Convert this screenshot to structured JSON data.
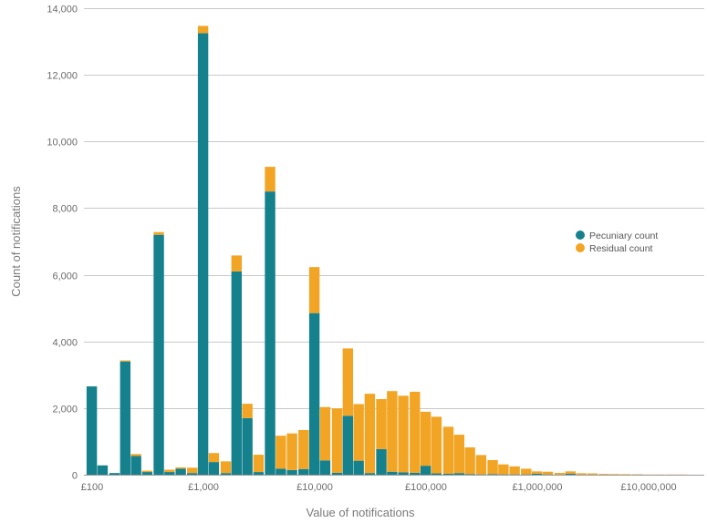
{
  "chart_data": {
    "type": "bar",
    "stacked": true,
    "x_scale": "log",
    "xlabel": "Value of notifications",
    "ylabel": "Count of notifications",
    "xticks": [
      {
        "value": 100,
        "label": "£100"
      },
      {
        "value": 1000,
        "label": "£1,000"
      },
      {
        "value": 10000,
        "label": "£10,000"
      },
      {
        "value": 100000,
        "label": "£100,000"
      },
      {
        "value": 1000000,
        "label": "£1,000,000"
      },
      {
        "value": 10000000,
        "label": "£10,000,000"
      }
    ],
    "yticks": [
      {
        "value": 0,
        "label": "0"
      },
      {
        "value": 2000,
        "label": "2,000"
      },
      {
        "value": 4000,
        "label": "4,000"
      },
      {
        "value": 6000,
        "label": "6,000"
      },
      {
        "value": 8000,
        "label": "8,000"
      },
      {
        "value": 10000,
        "label": "10,000"
      },
      {
        "value": 12000,
        "label": "12,000"
      },
      {
        "value": 14000,
        "label": "14,000"
      }
    ],
    "ylim": [
      0,
      14000
    ],
    "grid": true,
    "legend_position": "right",
    "x": [
      100,
      125,
      160,
      200,
      250,
      315,
      400,
      500,
      630,
      800,
      1000,
      1250,
      1600,
      2000,
      2500,
      3150,
      4000,
      5000,
      6300,
      8000,
      10000,
      12500,
      16000,
      20000,
      25000,
      31500,
      40000,
      50000,
      63000,
      80000,
      100000,
      125000,
      160000,
      200000,
      250000,
      315000,
      400000,
      500000,
      630000,
      800000,
      1000000,
      1250000,
      1600000,
      2000000,
      2500000,
      3150000,
      4000000,
      5000000,
      6300000,
      8000000,
      10000000,
      12500000,
      16000000,
      20000000
    ],
    "series": [
      {
        "name": "Pecuniary count",
        "color": "#15818d",
        "values": [
          2650,
          280,
          50,
          3400,
          560,
          80,
          7200,
          80,
          180,
          50,
          13250,
          380,
          50,
          6100,
          1700,
          80,
          8500,
          180,
          140,
          170,
          4850,
          430,
          60,
          1770,
          420,
          50,
          770,
          90,
          70,
          60,
          270,
          40,
          30,
          50,
          20,
          10,
          20,
          10,
          10,
          10,
          30,
          10,
          5,
          30,
          5,
          5,
          5,
          5,
          5,
          5,
          0,
          0,
          0,
          0
        ]
      },
      {
        "name": "Residual count",
        "color": "#f2a524",
        "values": [
          0,
          0,
          0,
          30,
          60,
          40,
          80,
          70,
          40,
          160,
          220,
          270,
          350,
          480,
          430,
          520,
          740,
          990,
          1100,
          1170,
          1380,
          1600,
          1930,
          2020,
          1700,
          2380,
          1500,
          2420,
          2300,
          2430,
          1620,
          1700,
          1410,
          1150,
          800,
          580,
          420,
          300,
          240,
          170,
          70,
          80,
          50,
          70,
          40,
          35,
          20,
          15,
          10,
          5,
          5,
          5,
          5,
          5
        ]
      }
    ]
  }
}
